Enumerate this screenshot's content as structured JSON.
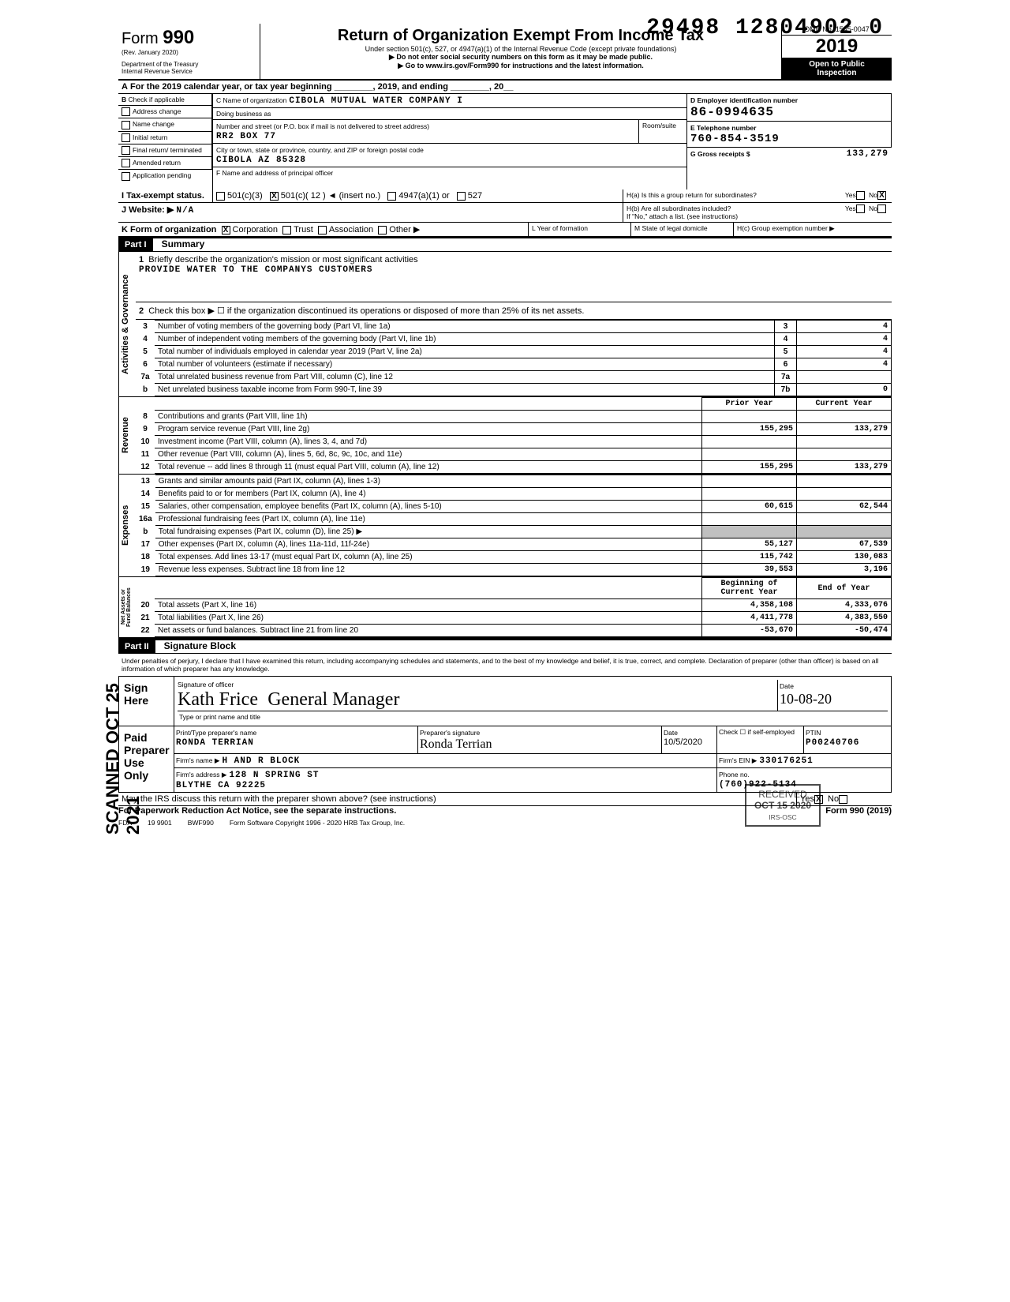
{
  "stamp_top": "29498 12804902  0",
  "form": {
    "number_prefix": "Form",
    "number": "990",
    "rev": "(Rev. January 2020)",
    "dept": "Department of the Treasury\nInternal Revenue Service",
    "title": "Return of Organization Exempt From Income Tax",
    "sub1": "Under section 501(c), 527, or 4947(a)(1) of the Internal Revenue Code (except private foundations)",
    "sub2": "▶ Do not enter social security numbers on this form as it may be made public.",
    "sub3": "▶ Go to www.irs.gov/Form990 for instructions and the latest information.",
    "omb": "OMB No. 1545-0047",
    "year": "2019",
    "public1": "Open to Public",
    "public2": "Inspection"
  },
  "lineA": "For the 2019 calendar year, or tax year beginning ________, 2019, and ending ________, 20__",
  "boxB_label": "Check if applicable",
  "boxB_items": [
    "Address change",
    "Name change",
    "Initial return",
    "Final return/ terminated",
    "Amended return",
    "Application pending"
  ],
  "boxC": {
    "label": "C Name of organization",
    "org": "CIBOLA MUTUAL WATER COMPANY I",
    "dba_label": "Doing business as",
    "street_label": "Number and street (or P.O. box if mail is not delivered to street address)",
    "street": "RR2 BOX 77",
    "room_label": "Room/suite",
    "city_label": "City or town, state or province, country, and ZIP or foreign postal code",
    "city": "CIBOLA AZ 85328",
    "f_label": "F  Name and address of principal officer"
  },
  "boxD": {
    "label": "D Employer identification number",
    "value": "86-0994635"
  },
  "boxE": {
    "label": "E Telephone number",
    "value": "760-854-3519"
  },
  "boxG": {
    "label": "G Gross receipts $",
    "value": "133,279"
  },
  "boxH": {
    "a": "H(a) Is this a group return for subordinates?",
    "b": "H(b) Are all subordinates included?",
    "note": "If \"No,\" attach a list. (see instructions)",
    "c": "H(c) Group exemption number ▶",
    "yes": "Yes",
    "no": "No",
    "a_checked": "No"
  },
  "boxI": {
    "label": "I  Tax-exempt status.",
    "opts": [
      "501(c)(3)",
      "501(c)( 12 ) ◄ (insert no.)",
      "4947(a)(1) or",
      "527"
    ],
    "checked_idx": 1
  },
  "boxJ": {
    "label": "J Website: ▶",
    "value": "N/A"
  },
  "boxK": {
    "label": "K Form of organization",
    "opts": [
      "Corporation",
      "Trust",
      "Association",
      "Other ▶"
    ],
    "checked_idx": 0
  },
  "boxL": "L Year of formation",
  "boxM": "M State of legal domicile",
  "part1": {
    "tag": "Part I",
    "label": "Summary"
  },
  "sideways": {
    "gov": "Activities & Governance",
    "rev": "Revenue",
    "exp": "Expenses",
    "net": "Net Assets or\nFund Balances"
  },
  "q1": {
    "label": "Briefly describe the organization's mission or most significant activities",
    "answer": "PROVIDE WATER TO THE COMPANYS CUSTOMERS"
  },
  "q2": "Check this box ▶ ☐ if the organization discontinued its operations or disposed of more than 25% of its net assets.",
  "gov_rows": [
    {
      "n": "3",
      "d": "Number of voting members of the governing body (Part VI, line 1a)",
      "l": "3",
      "v": "4"
    },
    {
      "n": "4",
      "d": "Number of independent voting members of the governing body (Part VI, line 1b)",
      "l": "4",
      "v": "4"
    },
    {
      "n": "5",
      "d": "Total number of individuals employed in calendar year 2019 (Part V, line 2a)",
      "l": "5",
      "v": "4"
    },
    {
      "n": "6",
      "d": "Total number of volunteers (estimate if necessary)",
      "l": "6",
      "v": "4"
    },
    {
      "n": "7a",
      "d": "Total unrelated business revenue from Part VIII, column (C), line 12",
      "l": "7a",
      "v": ""
    },
    {
      "n": "b",
      "d": "Net unrelated business taxable income from Form 990-T, line 39",
      "l": "7b",
      "v": "0"
    }
  ],
  "twoCol_head": {
    "py": "Prior Year",
    "cy": "Current Year"
  },
  "rev_rows": [
    {
      "n": "8",
      "d": "Contributions and grants (Part VIII, line 1h)",
      "py": "",
      "cy": ""
    },
    {
      "n": "9",
      "d": "Program service revenue (Part VIII, line 2g)",
      "py": "155,295",
      "cy": "133,279"
    },
    {
      "n": "10",
      "d": "Investment income (Part VIII, column (A), lines 3, 4, and 7d)",
      "py": "",
      "cy": ""
    },
    {
      "n": "11",
      "d": "Other revenue (Part VIII, column (A), lines 5, 6d, 8c, 9c, 10c, and 11e)",
      "py": "",
      "cy": ""
    },
    {
      "n": "12",
      "d": "Total revenue -- add lines 8 through 11 (must equal Part VIII, column (A), line 12)",
      "py": "155,295",
      "cy": "133,279"
    }
  ],
  "exp_rows": [
    {
      "n": "13",
      "d": "Grants and similar amounts paid (Part IX, column (A), lines 1-3)",
      "py": "",
      "cy": ""
    },
    {
      "n": "14",
      "d": "Benefits paid to or for members (Part IX, column (A), line 4)",
      "py": "",
      "cy": ""
    },
    {
      "n": "15",
      "d": "Salaries, other compensation, employee benefits (Part IX, column (A), lines 5-10)",
      "py": "60,615",
      "cy": "62,544"
    },
    {
      "n": "16a",
      "d": "Professional fundraising fees (Part IX, column (A), line 11e)",
      "py": "",
      "cy": ""
    },
    {
      "n": "b",
      "d": "Total fundraising expenses (Part IX, column (D), line 25)   ▶",
      "py": "gray",
      "cy": "gray"
    },
    {
      "n": "17",
      "d": "Other expenses (Part IX, column (A), lines 11a-11d, 11f-24e)",
      "py": "55,127",
      "cy": "67,539"
    },
    {
      "n": "18",
      "d": "Total expenses. Add lines 13-17 (must equal Part IX, column (A), line 25)",
      "py": "115,742",
      "cy": "130,083"
    },
    {
      "n": "19",
      "d": "Revenue less expenses. Subtract line 18 from line 12",
      "py": "39,553",
      "cy": "3,196"
    }
  ],
  "net_head": {
    "py": "Beginning of Current Year",
    "cy": "End of Year"
  },
  "net_rows": [
    {
      "n": "20",
      "d": "Total assets (Part X, line 16)",
      "py": "4,358,108",
      "cy": "4,333,076"
    },
    {
      "n": "21",
      "d": "Total liabilities (Part X, line 26)",
      "py": "4,411,778",
      "cy": "4,383,550"
    },
    {
      "n": "22",
      "d": "Net assets or fund balances. Subtract line 21 from line 20",
      "py": "-53,670",
      "cy": "-50,474"
    }
  ],
  "part2": {
    "tag": "Part II",
    "label": "Signature Block"
  },
  "perjury": "Under penalties of perjury, I declare that I have examined this return, including accompanying schedules and statements, and to the best of my knowledge and belief, it is true, correct, and complete. Declaration of preparer (other than officer) is based on all information of which preparer has any knowledge.",
  "sign": {
    "here": "Sign\nHere",
    "sig_label": "Signature of officer",
    "sig": "Kath Frice",
    "title": "General Manager",
    "date_label": "Date",
    "date": "10-08-20",
    "type_label": "Type or print name and title"
  },
  "paid": {
    "label": "Paid\nPreparer\nUse Only",
    "name_label": "Print/Type preparer's name",
    "name": "RONDA TERRIAN",
    "sig_label": "Preparer's signature",
    "date_label": "Date",
    "date": "10/5/2020",
    "check_label": "Check ☐ if self-employed",
    "ptin_label": "PTIN",
    "ptin": "P00240706",
    "firm_label": "Firm's name ▶",
    "firm": "H AND R BLOCK",
    "ein_label": "Firm's EIN ▶",
    "ein": "330176251",
    "addr_label": "Firm's address ▶",
    "addr1": "128 N SPRING ST",
    "addr2": "BLYTHE CA 92225",
    "phone_label": "Phone no.",
    "phone": "(760)922-5134"
  },
  "discuss": "May the IRS discuss this return with the preparer shown above? (see instructions)",
  "discuss_yes": "Yes",
  "discuss_no": "No",
  "paperwork": "For Paperwork Reduction Act Notice, see the separate instructions.",
  "footer": {
    "a": "FDA",
    "b": "19 9901",
    "c": "BWF990",
    "d": "Form Software Copyright 1996 - 2020 HRB Tax Group, Inc.",
    "form": "Form 990 (2019)"
  },
  "received": {
    "l1": "RECEIVED",
    "l2": "OCT 15 2020",
    "l3": "IRS-OSC"
  },
  "scanned": "SCANNED OCT 25 2021"
}
